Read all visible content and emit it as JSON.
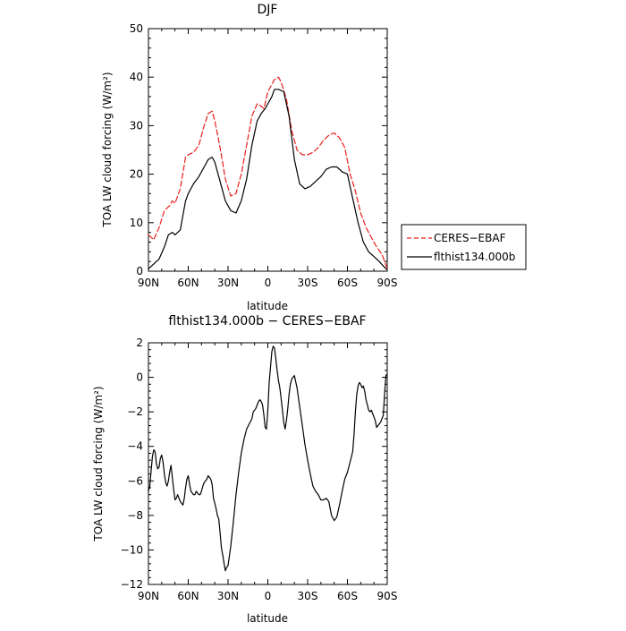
{
  "chart_data": [
    {
      "type": "line",
      "title": "DJF",
      "xlabel": "latitude",
      "ylabel": "TOA LW cloud forcing (W/m²)",
      "xlim": [
        90,
        -90
      ],
      "ylim": [
        0,
        50
      ],
      "x_ticks": [
        90,
        60,
        30,
        0,
        -30,
        -60,
        -90
      ],
      "x_tick_labels": [
        "90N",
        "60N",
        "30N",
        "0",
        "30S",
        "60S",
        "90S"
      ],
      "y_ticks": [
        0,
        10,
        20,
        30,
        40,
        50
      ],
      "y_tick_labels": [
        "0",
        "10",
        "20",
        "30",
        "40",
        "50"
      ],
      "legend_position": "right",
      "series": [
        {
          "name": "CERES−EBAF",
          "color": "#e8201c",
          "dash": "dashed",
          "x": [
            90,
            86,
            82,
            78,
            74,
            72,
            70,
            66,
            62,
            60,
            56,
            52,
            48,
            45,
            42,
            40,
            36,
            32,
            28,
            24,
            20,
            16,
            12,
            8,
            5,
            3,
            0,
            -2,
            -5,
            -8,
            -10,
            -14,
            -18,
            -22,
            -26,
            -30,
            -34,
            -38,
            -42,
            -46,
            -50,
            -54,
            -58,
            -62,
            -66,
            -70,
            -74,
            -78,
            -82,
            -86,
            -90
          ],
          "y": [
            7.5,
            6.5,
            9,
            12.5,
            13.5,
            14.5,
            14,
            17,
            23.5,
            24,
            24.5,
            26,
            30,
            32.5,
            33,
            31,
            25.5,
            19,
            15.5,
            16,
            20,
            26,
            32,
            34.5,
            34,
            33.5,
            37,
            38,
            39.5,
            40,
            39,
            35.5,
            29,
            25,
            24,
            24,
            24.5,
            25.5,
            27,
            28,
            28.5,
            27.5,
            25.5,
            20,
            16.5,
            12,
            9,
            7,
            5,
            3.5,
            0.5
          ]
        },
        {
          "name": "flthist134.000b",
          "color": "#000000",
          "dash": "solid",
          "x": [
            90,
            86,
            82,
            78,
            75,
            72,
            70,
            66,
            62,
            60,
            56,
            52,
            48,
            45,
            42,
            40,
            36,
            32,
            28,
            24,
            20,
            16,
            12,
            8,
            5,
            2,
            0,
            -3,
            -5,
            -8,
            -12,
            -16,
            -20,
            -24,
            -28,
            -32,
            -36,
            -40,
            -44,
            -48,
            -52,
            -56,
            -60,
            -64,
            -68,
            -72,
            -76,
            -80,
            -84,
            -88,
            -90
          ],
          "y": [
            0.5,
            1.5,
            2.5,
            5,
            7.5,
            8,
            7.5,
            8.5,
            14.5,
            16,
            18,
            19.5,
            21.5,
            23,
            23.5,
            22.5,
            18.5,
            14.5,
            12.5,
            12,
            14.5,
            19,
            26,
            31,
            32.5,
            33.5,
            34.5,
            36,
            37.5,
            37.5,
            37,
            32,
            23,
            18,
            17,
            17.5,
            18.5,
            19.5,
            21,
            21.5,
            21.5,
            20.5,
            20,
            15,
            10,
            6,
            4,
            3,
            2,
            0.8,
            0.3
          ]
        }
      ]
    },
    {
      "type": "line",
      "title": "flthist134.000b − CERES−EBAF",
      "xlabel": "latitude",
      "ylabel": "TOA LW cloud forcing (W/m²)",
      "xlim": [
        90,
        -90
      ],
      "ylim": [
        -12,
        2
      ],
      "x_ticks": [
        90,
        60,
        30,
        0,
        -30,
        -60,
        -90
      ],
      "x_tick_labels": [
        "90N",
        "60N",
        "30N",
        "0",
        "30S",
        "60S",
        "90S"
      ],
      "y_ticks": [
        -12,
        -10,
        -8,
        -6,
        -4,
        -2,
        0,
        2
      ],
      "y_tick_labels": [
        "−12",
        "−10",
        "−8",
        "−6",
        "−4",
        "−2",
        "0",
        "2"
      ],
      "series": [
        {
          "color": "#000000",
          "dash": "solid",
          "x": [
            90,
            89,
            87,
            86,
            85,
            84,
            83,
            82,
            81,
            80,
            79,
            78,
            77,
            76,
            75,
            74,
            73,
            72,
            71,
            70,
            69,
            68,
            67,
            66,
            65,
            64,
            63,
            62,
            61,
            60,
            59,
            58,
            57,
            56,
            55,
            54,
            53,
            52,
            51,
            50,
            49,
            48,
            47,
            46,
            45,
            44,
            43,
            42,
            41,
            40,
            39,
            38,
            37,
            36,
            35,
            34,
            33,
            32,
            31,
            30,
            28,
            26,
            24,
            22,
            20,
            18,
            16,
            14,
            12,
            11,
            10,
            9,
            8,
            7,
            6,
            5,
            4,
            3,
            2,
            1,
            0,
            -1,
            -2,
            -3,
            -4,
            -5,
            -6,
            -7,
            -8,
            -9,
            -10,
            -11,
            -12,
            -13,
            -14,
            -15,
            -16,
            -17,
            -18,
            -19,
            -20,
            -22,
            -24,
            -26,
            -28,
            -30,
            -32,
            -34,
            -36,
            -38,
            -40,
            -42,
            -44,
            -46,
            -47,
            -48,
            -50,
            -52,
            -54,
            -56,
            -58,
            -60,
            -62,
            -64,
            -65,
            -66,
            -67,
            -68,
            -69,
            -70,
            -71,
            -72,
            -73,
            -74,
            -75,
            -76,
            -77,
            -78,
            -79,
            -80,
            -81,
            -82,
            -83,
            -84,
            -85,
            -86,
            -87,
            -88,
            -89,
            -90
          ],
          "y": [
            -6.6,
            -6.3,
            -4.6,
            -4.2,
            -4.3,
            -5.0,
            -5.3,
            -5.2,
            -4.7,
            -4.5,
            -4.9,
            -5.6,
            -6.1,
            -6.3,
            -6.0,
            -5.5,
            -5.1,
            -5.8,
            -6.5,
            -7.1,
            -7.0,
            -6.8,
            -7.0,
            -7.2,
            -7.3,
            -7.4,
            -7.0,
            -6.4,
            -5.9,
            -5.7,
            -6.2,
            -6.6,
            -6.7,
            -6.8,
            -6.8,
            -6.6,
            -6.7,
            -6.8,
            -6.8,
            -6.6,
            -6.3,
            -6.1,
            -6.0,
            -5.9,
            -5.7,
            -5.8,
            -5.9,
            -6.2,
            -7.0,
            -7.3,
            -7.6,
            -8.0,
            -8.2,
            -9.0,
            -9.9,
            -10.3,
            -10.8,
            -11.2,
            -11.0,
            -10.9,
            -9.8,
            -8.4,
            -6.8,
            -5.5,
            -4.4,
            -3.6,
            -3.0,
            -2.7,
            -2.4,
            -2.0,
            -1.9,
            -1.8,
            -1.6,
            -1.4,
            -1.3,
            -1.4,
            -1.6,
            -2.2,
            -2.9,
            -3.0,
            -1.9,
            -0.3,
            0.6,
            1.5,
            1.8,
            1.7,
            1.1,
            0.4,
            -0.2,
            -0.6,
            -1.2,
            -1.9,
            -2.6,
            -3.0,
            -2.5,
            -1.8,
            -1.0,
            -0.4,
            -0.1,
            0.0,
            0.1,
            -0.6,
            -1.7,
            -2.8,
            -3.9,
            -4.8,
            -5.6,
            -6.3,
            -6.6,
            -6.8,
            -7.1,
            -7.1,
            -7.0,
            -7.2,
            -7.6,
            -8.0,
            -8.3,
            -8.1,
            -7.4,
            -6.6,
            -5.9,
            -5.5,
            -4.9,
            -4.3,
            -3.3,
            -2.0,
            -1.0,
            -0.5,
            -0.3,
            -0.4,
            -0.6,
            -0.5,
            -0.8,
            -1.3,
            -1.6,
            -1.9,
            -2.0,
            -1.9,
            -2.1,
            -2.3,
            -2.5,
            -2.9,
            -2.8,
            -2.7,
            -2.6,
            -2.4,
            -2.2,
            -1.0,
            0.1,
            0.2
          ]
        }
      ]
    }
  ]
}
